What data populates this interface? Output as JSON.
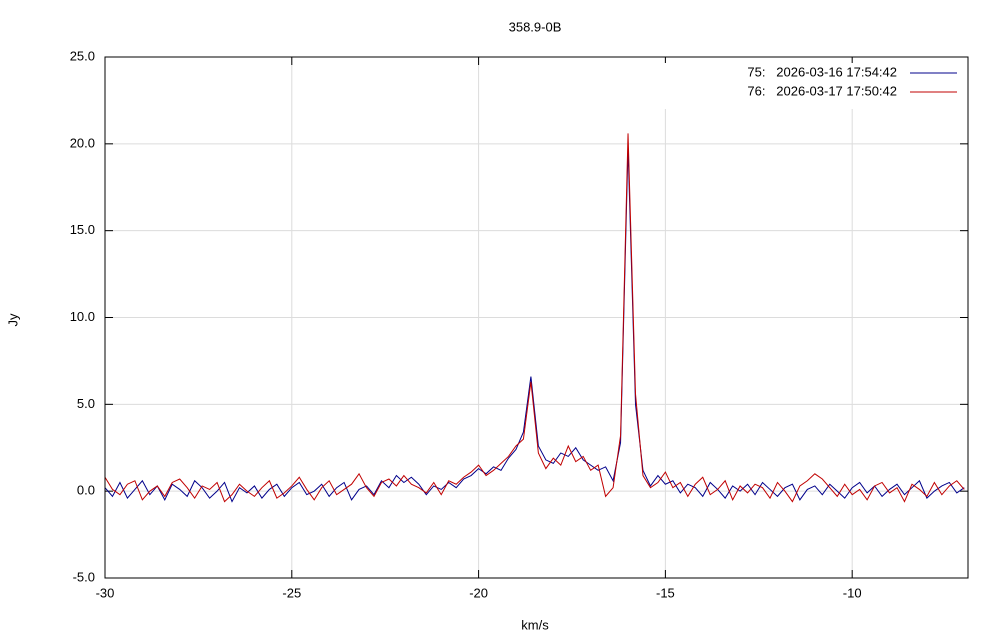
{
  "chart_data": {
    "type": "line",
    "title": "358.9-0B",
    "x_label": "km/s",
    "y_label": "Jy",
    "x": [
      -30,
      -29.8,
      -29.6,
      -29.4,
      -29.2,
      -29,
      -28.8,
      -28.6,
      -28.4,
      -28.2,
      -28,
      -27.8,
      -27.6,
      -27.4,
      -27.2,
      -27,
      -26.8,
      -26.6,
      -26.4,
      -26.2,
      -26,
      -25.8,
      -25.6,
      -25.4,
      -25.2,
      -25,
      -24.8,
      -24.6,
      -24.4,
      -24.2,
      -24,
      -23.8,
      -23.6,
      -23.4,
      -23.2,
      -23,
      -22.8,
      -22.6,
      -22.4,
      -22.2,
      -22,
      -21.8,
      -21.6,
      -21.4,
      -21.2,
      -21,
      -20.8,
      -20.6,
      -20.4,
      -20.2,
      -20,
      -19.8,
      -19.6,
      -19.4,
      -19.2,
      -19,
      -18.8,
      -18.6,
      -18.4,
      -18.2,
      -18,
      -17.8,
      -17.6,
      -17.4,
      -17.2,
      -17,
      -16.8,
      -16.6,
      -16.4,
      -16.2,
      -16,
      -15.8,
      -15.6,
      -15.4,
      -15.2,
      -15,
      -14.8,
      -14.6,
      -14.4,
      -14.2,
      -14,
      -13.8,
      -13.6,
      -13.4,
      -13.2,
      -13,
      -12.8,
      -12.6,
      -12.4,
      -12.2,
      -12,
      -11.8,
      -11.6,
      -11.4,
      -11.2,
      -11,
      -10.8,
      -10.6,
      -10.4,
      -10.2,
      -10,
      -9.8,
      -9.6,
      -9.4,
      -9.2,
      -9,
      -8.8,
      -8.6,
      -8.4,
      -8.2,
      -8,
      -7.8,
      -7.6,
      -7.4,
      -7.2,
      -7
    ],
    "series": [
      {
        "name": "75:   2026-03-16 17:54:42",
        "color": "#00008b",
        "values": [
          0.2,
          -0.3,
          0.5,
          -0.4,
          0.1,
          0.6,
          -0.2,
          0.3,
          -0.5,
          0.4,
          0.1,
          -0.3,
          0.6,
          0.2,
          -0.4,
          0.0,
          0.5,
          -0.6,
          0.2,
          -0.1,
          0.3,
          -0.4,
          0.1,
          0.4,
          -0.3,
          0.2,
          0.5,
          -0.2,
          0.0,
          0.4,
          -0.3,
          0.2,
          0.5,
          -0.5,
          0.1,
          0.3,
          -0.2,
          0.6,
          0.2,
          0.9,
          0.5,
          0.8,
          0.4,
          -0.2,
          0.3,
          0.1,
          0.5,
          0.2,
          0.7,
          0.9,
          1.3,
          1.0,
          1.4,
          1.2,
          1.9,
          2.4,
          3.4,
          6.6,
          2.6,
          1.8,
          1.6,
          2.2,
          2.0,
          2.5,
          1.8,
          1.5,
          1.2,
          1.4,
          0.6,
          2.8,
          19.8,
          5.0,
          1.2,
          0.3,
          0.9,
          0.4,
          0.6,
          -0.1,
          0.4,
          0.2,
          -0.3,
          0.5,
          0.1,
          -0.4,
          0.3,
          0.0,
          0.4,
          -0.2,
          0.5,
          0.1,
          -0.3,
          0.2,
          0.4,
          -0.5,
          0.1,
          0.3,
          -0.2,
          0.4,
          0.0,
          -0.4,
          0.2,
          0.5,
          -0.1,
          0.3,
          -0.3,
          0.1,
          0.4,
          -0.2,
          0.2,
          0.6,
          -0.4,
          0.0,
          0.3,
          0.5,
          -0.1,
          0.2
        ]
      },
      {
        "name": "76:   2026-03-17 17:50:42",
        "color": "#c00000",
        "values": [
          0.8,
          0.1,
          -0.2,
          0.4,
          0.6,
          -0.5,
          0.0,
          0.3,
          -0.3,
          0.5,
          0.7,
          0.2,
          -0.4,
          0.3,
          0.1,
          0.5,
          -0.6,
          -0.2,
          0.4,
          0.0,
          -0.3,
          0.2,
          0.6,
          -0.4,
          -0.1,
          0.3,
          0.8,
          0.1,
          -0.5,
          0.2,
          0.6,
          -0.2,
          0.1,
          0.4,
          1.0,
          0.2,
          -0.3,
          0.5,
          0.7,
          0.3,
          0.9,
          0.4,
          0.2,
          -0.1,
          0.5,
          -0.2,
          0.6,
          0.4,
          0.8,
          1.1,
          1.5,
          0.9,
          1.2,
          1.6,
          2.0,
          2.6,
          3.0,
          6.3,
          2.2,
          1.3,
          1.9,
          1.5,
          2.6,
          1.7,
          2.0,
          1.2,
          1.5,
          -0.3,
          0.2,
          3.2,
          20.6,
          5.6,
          0.9,
          0.2,
          0.5,
          1.1,
          0.2,
          0.5,
          -0.3,
          0.4,
          0.8,
          -0.2,
          0.1,
          0.6,
          -0.5,
          0.3,
          -0.1,
          0.4,
          0.2,
          -0.4,
          0.5,
          0.0,
          -0.6,
          0.3,
          0.6,
          1.0,
          0.7,
          0.2,
          -0.3,
          0.4,
          -0.2,
          0.1,
          -0.5,
          0.3,
          0.5,
          -0.1,
          0.2,
          -0.6,
          0.4,
          0.1,
          -0.3,
          0.5,
          -0.2,
          0.3,
          0.6,
          0.1
        ]
      }
    ],
    "xlim": [
      -30,
      -6.9
    ],
    "ylim": [
      -5,
      25
    ],
    "xticks": [
      -30,
      -25,
      -20,
      -15,
      -10
    ],
    "yticks": [
      {
        "value": -5,
        "label": "-5.0"
      },
      {
        "value": 0,
        "label": "0.0"
      },
      {
        "value": 5,
        "label": "5.0"
      },
      {
        "value": 10,
        "label": "10.0"
      },
      {
        "value": 15,
        "label": "15.0"
      },
      {
        "value": 20,
        "label": "20.0"
      },
      {
        "value": 25,
        "label": "25.0"
      }
    ],
    "grid": true,
    "legend": "top-right"
  }
}
